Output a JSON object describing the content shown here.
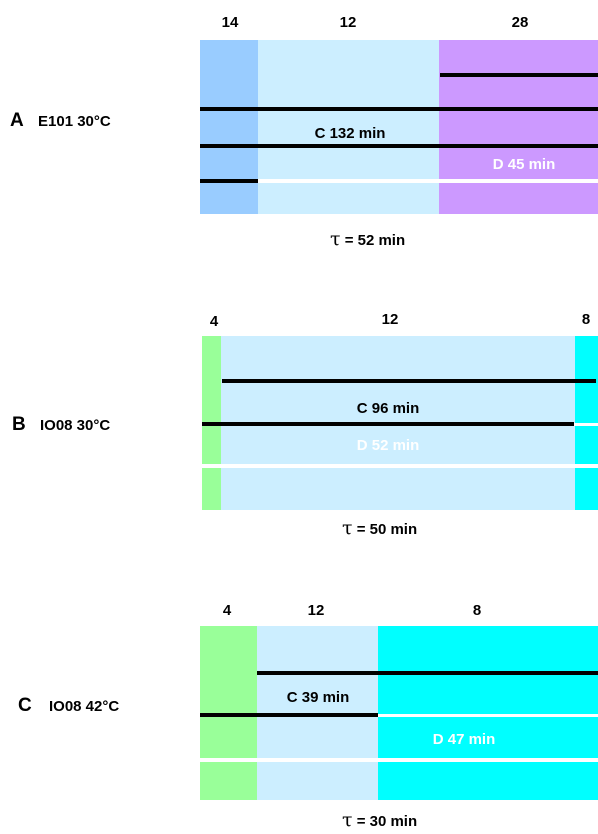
{
  "colors": {
    "blue": "#99ccff",
    "light_blue": "#cceeff",
    "purple": "#cc99ff",
    "green": "#99ff99",
    "cyan": "#00ffff"
  },
  "panels": [
    {
      "letter": "A",
      "condition": "E101 30°C",
      "segment_numbers": [
        "14",
        "12",
        "28"
      ],
      "c_label": "C 132 min",
      "d_label": "D 45 min",
      "tau_symbol": "τ",
      "tau_text": "= 52 min"
    },
    {
      "letter": "B",
      "condition": "IO08 30°C",
      "segment_numbers": [
        "4",
        "12",
        "8"
      ],
      "c_label": "C 96 min",
      "d_label": "D 52 min",
      "tau_symbol": "τ",
      "tau_text": "= 50 min"
    },
    {
      "letter": "C",
      "condition": "IO08 42°C",
      "segment_numbers": [
        "4",
        "12",
        "8"
      ],
      "c_label": "C 39 min",
      "d_label": "D 47 min",
      "tau_symbol": "τ",
      "tau_text": "= 30 min"
    }
  ]
}
